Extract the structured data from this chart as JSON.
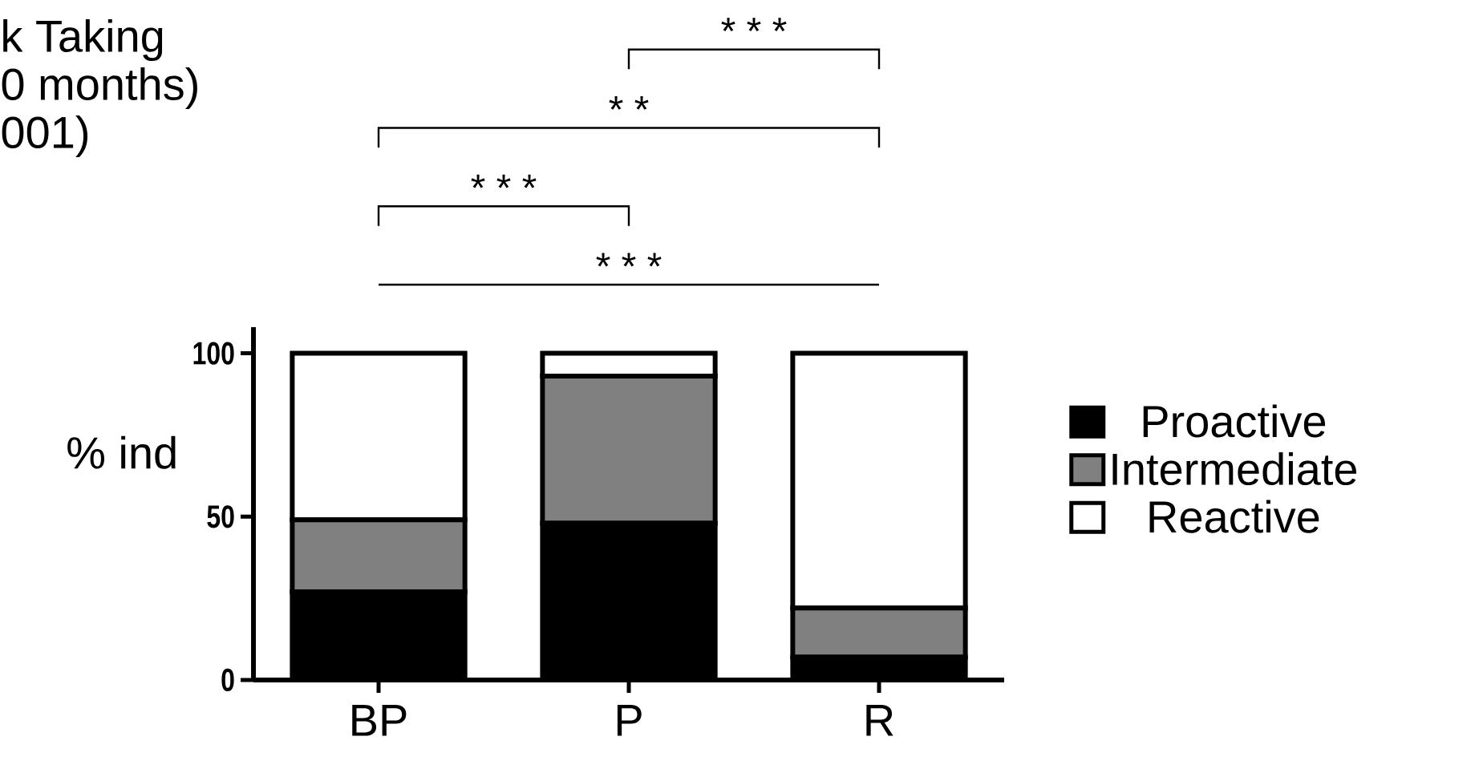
{
  "chart_data": {
    "type": "bar",
    "stacked": true,
    "ylabel": "% ind",
    "categories": [
      "BP",
      "P",
      "R"
    ],
    "series": [
      {
        "name": "Proactive",
        "color": "#000000",
        "values": [
          27,
          48,
          7
        ]
      },
      {
        "name": "Intermediate",
        "color": "#808080",
        "values": [
          22,
          45,
          15
        ]
      },
      {
        "name": "Reactive",
        "color": "#ffffff",
        "values": [
          51,
          7,
          78
        ]
      }
    ],
    "ylim": [
      0,
      108
    ],
    "yticks": [
      0,
      50,
      100
    ],
    "legend": "right",
    "annotations": [
      "k Taking",
      "0 months)",
      "001)",
      "* * *",
      "* *",
      "* * *",
      "* * *"
    ]
  }
}
